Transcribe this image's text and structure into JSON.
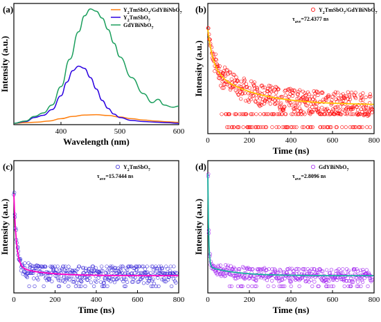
{
  "chart_data": [
    {
      "type": "line",
      "panel_label": "(a)",
      "xlabel": "Wavelength (nm)",
      "ylabel": "Intensity (a.u.)",
      "xlim": [
        320,
        600
      ],
      "ylim": [
        0,
        1.06
      ],
      "xticks": [
        400,
        500,
        600
      ],
      "xtick_labels": [
        "400",
        "500",
        "600"
      ],
      "legend": "top-right",
      "series": [
        {
          "name": "Y₂TmSbO₇/GdYBiNbO₇",
          "color": "#ff7f0e",
          "x": [
            320,
            340,
            360,
            380,
            400,
            420,
            440,
            460,
            480,
            500,
            520,
            540,
            560,
            580,
            600
          ],
          "y": [
            0.0,
            0.005,
            0.01,
            0.02,
            0.04,
            0.06,
            0.072,
            0.075,
            0.068,
            0.055,
            0.04,
            0.028,
            0.02,
            0.013,
            0.008
          ]
        },
        {
          "name": "Y₂TmSbO₇",
          "color": "#2a00e0",
          "x": [
            320,
            340,
            355,
            370,
            385,
            400,
            410,
            420,
            430,
            440,
            450,
            460,
            470,
            480,
            490,
            500,
            520,
            540,
            560,
            580,
            600
          ],
          "y": [
            0.0,
            0.015,
            0.05,
            0.07,
            0.12,
            0.24,
            0.36,
            0.46,
            0.5,
            0.48,
            0.4,
            0.3,
            0.2,
            0.13,
            0.08,
            0.05,
            0.025,
            0.015,
            0.01,
            0.005,
            0.0
          ]
        },
        {
          "name": "GdYBiNbO₇",
          "color": "#1a9e5c",
          "x": [
            320,
            340,
            355,
            370,
            385,
            400,
            415,
            430,
            440,
            450,
            460,
            470,
            480,
            490,
            500,
            520,
            540,
            555,
            565,
            575,
            590,
            600
          ],
          "y": [
            0.0,
            0.02,
            0.06,
            0.09,
            0.16,
            0.32,
            0.56,
            0.8,
            0.94,
            1.0,
            0.98,
            0.92,
            0.82,
            0.7,
            0.58,
            0.4,
            0.26,
            0.18,
            0.21,
            0.16,
            0.14,
            0.15
          ]
        }
      ]
    },
    {
      "type": "scatter",
      "panel_label": "(b)",
      "xlabel": "Time (ns)",
      "ylabel": "Intensity (a.u.)",
      "xlim": [
        0,
        800
      ],
      "xticks": [
        0,
        200,
        400,
        600,
        800
      ],
      "legend": "top-right",
      "legend_label": "Y₂TmSbO₇/GdYBiNbO₇",
      "tau_label": "τave=72.4377 ns",
      "marker_color": "#ff0000",
      "fit_color": "#ffc000",
      "tau_ns": 72.4377
    },
    {
      "type": "scatter",
      "panel_label": "(c)",
      "xlabel": "Time (ns)",
      "ylabel": "Intensity (a.u.)",
      "xlim": [
        0,
        800
      ],
      "xticks": [
        0,
        200,
        400,
        600,
        800
      ],
      "legend": "top-right",
      "legend_label": "Y₂TmSbO₇",
      "tau_label": "τave=15.7444 ns",
      "marker_color": "#3a2ad8",
      "fit_color": "#ff00c8",
      "tau_ns": 15.7444
    },
    {
      "type": "scatter",
      "panel_label": "(d)",
      "xlabel": "Time (ns)",
      "ylabel": "Intensity (a.u.)",
      "xlim": [
        0,
        800
      ],
      "xticks": [
        0,
        200,
        400,
        600,
        800
      ],
      "legend": "top-right",
      "legend_label": "GdYBiNbO₇",
      "tau_label": "τave=2.8096 ns",
      "marker_color": "#a020f0",
      "fit_color": "#17b0a0",
      "tau_ns": 2.8096
    }
  ]
}
